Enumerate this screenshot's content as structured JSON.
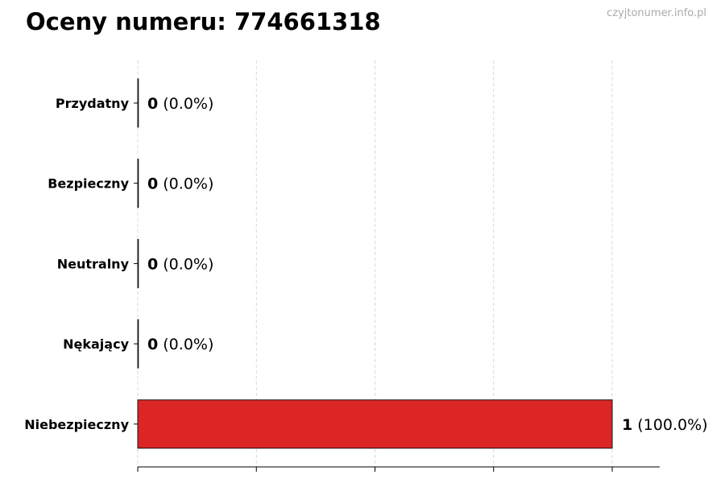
{
  "chart_data": {
    "type": "bar",
    "orientation": "horizontal",
    "title": "Oceny numeru: 774661318",
    "categories": [
      "Przydatny",
      "Bezpieczny",
      "Neutralny",
      "Nękający",
      "Niebezpieczny"
    ],
    "values": [
      0,
      0,
      0,
      0,
      1
    ],
    "percent_labels": [
      "(0.0%)",
      "(0.0%)",
      "(0.0%)",
      "(0.0%)",
      "(100.0%)"
    ],
    "bar_color": "#dc2626",
    "xlim": [
      0,
      1.1
    ],
    "xticks": [
      0,
      0.25,
      0.5,
      0.75,
      1
    ],
    "xtick_labels_shown": false,
    "grid": "vertical dashed",
    "xlabel": "",
    "ylabel": ""
  },
  "watermark": "czyjtonumer.info.pl"
}
